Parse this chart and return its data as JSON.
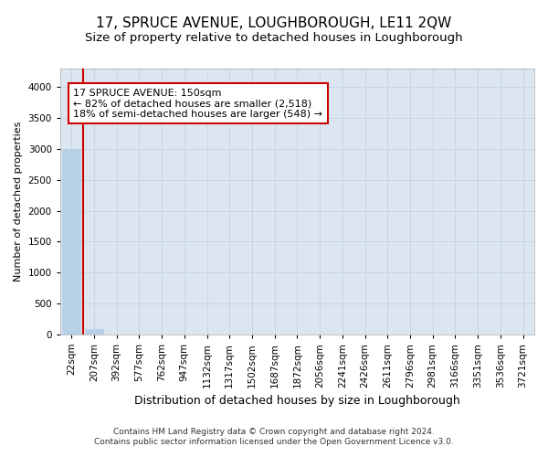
{
  "title": "17, SPRUCE AVENUE, LOUGHBOROUGH, LE11 2QW",
  "subtitle": "Size of property relative to detached houses in Loughborough",
  "xlabel": "Distribution of detached houses by size in Loughborough",
  "ylabel": "Number of detached properties",
  "footer_line1": "Contains HM Land Registry data © Crown copyright and database right 2024.",
  "footer_line2": "Contains public sector information licensed under the Open Government Licence v3.0.",
  "categories": [
    "22sqm",
    "207sqm",
    "392sqm",
    "577sqm",
    "762sqm",
    "947sqm",
    "1132sqm",
    "1317sqm",
    "1502sqm",
    "1687sqm",
    "1872sqm",
    "2056sqm",
    "2241sqm",
    "2426sqm",
    "2611sqm",
    "2796sqm",
    "2981sqm",
    "3166sqm",
    "3351sqm",
    "3536sqm",
    "3721sqm"
  ],
  "bar_values": [
    3000,
    90,
    0,
    0,
    0,
    0,
    0,
    0,
    0,
    0,
    0,
    0,
    0,
    0,
    0,
    0,
    0,
    0,
    0,
    0,
    0
  ],
  "bar_color": "#b8cfe8",
  "bar_edge_color": "#b8cfe8",
  "ylim": [
    0,
    4300
  ],
  "yticks": [
    0,
    500,
    1000,
    1500,
    2000,
    2500,
    3000,
    3500,
    4000
  ],
  "property_line_x": 0.5,
  "annotation_line1": "17 SPRUCE AVENUE: 150sqm",
  "annotation_line2": "← 82% of detached houses are smaller (2,518)",
  "annotation_line3": "18% of semi-detached houses are larger (548) →",
  "property_line_color": "#cc0000",
  "grid_color": "#c8d4e4",
  "bg_color": "#dce6f0",
  "title_fontsize": 11,
  "subtitle_fontsize": 9.5,
  "tick_fontsize": 7.5,
  "ylabel_fontsize": 8,
  "xlabel_fontsize": 9,
  "annotation_fontsize": 8
}
